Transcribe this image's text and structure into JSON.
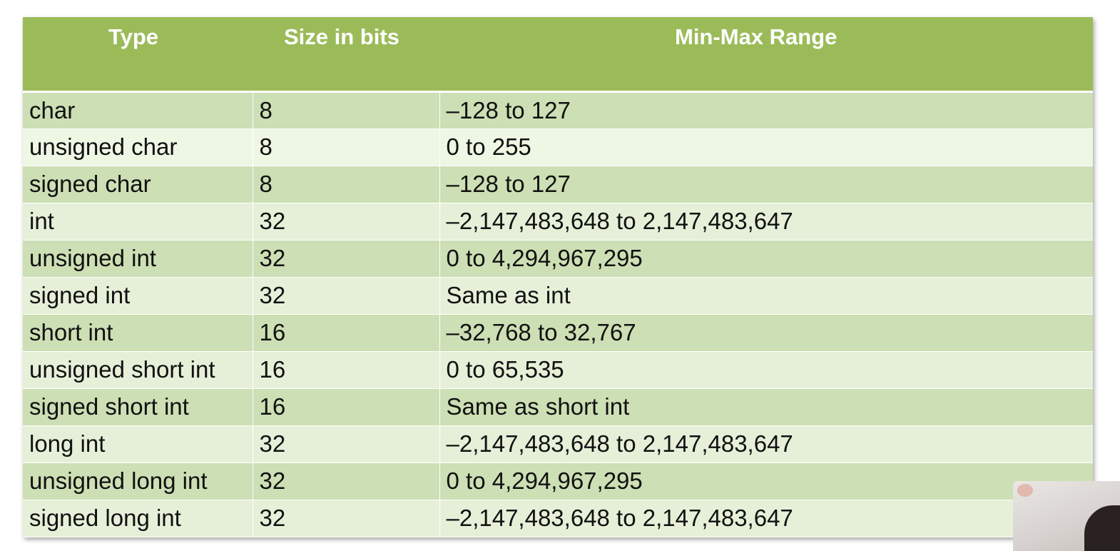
{
  "table": {
    "headers": [
      "Type",
      "Size in bits",
      "Min-Max Range"
    ],
    "rows": [
      [
        "char",
        "8",
        "–128 to 127"
      ],
      [
        "unsigned  char",
        "8",
        "0 to 255"
      ],
      [
        "signed char",
        "8",
        "–128 to 127"
      ],
      [
        "int",
        "32",
        "–2,147,483,648 to 2,147,483,647"
      ],
      [
        "unsigned  int",
        "32",
        "0 to 4,294,967,295"
      ],
      [
        "signed int",
        "32",
        "Same as int"
      ],
      [
        "short int",
        "16",
        "–32,768 to 32,767"
      ],
      [
        "unsigned short int",
        "16",
        "0 to 65,535"
      ],
      [
        "signed short int",
        "16",
        "Same as short int"
      ],
      [
        "long int",
        "32",
        "–2,147,483,648 to 2,147,483,647"
      ],
      [
        "unsigned long int",
        "32",
        "0 to 4,294,967,295"
      ],
      [
        "signed long int",
        "32",
        "–2,147,483,648 to 2,147,483,647"
      ]
    ]
  },
  "colors": {
    "header_bg": "#9bbb59",
    "row_dark": "#cddfb4",
    "row_light": "#e6f0d9",
    "header_text": "#ffffff"
  }
}
